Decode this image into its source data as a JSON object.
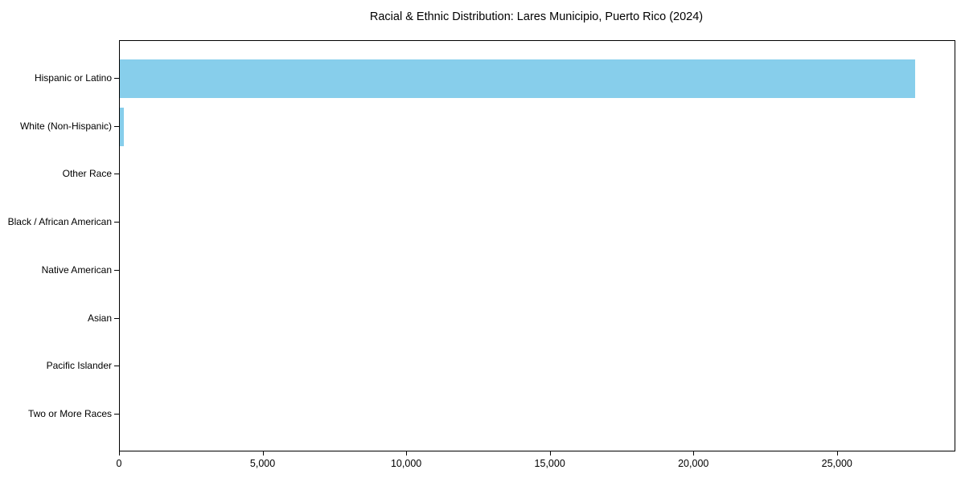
{
  "chart_data": {
    "type": "bar",
    "orientation": "horizontal",
    "title": "Racial & Ethnic Distribution: Lares Municipio, Puerto Rico (2024)",
    "categories": [
      "Hispanic or Latino",
      "White (Non-Hispanic)",
      "Other Race",
      "Black / African American",
      "Native American",
      "Asian",
      "Pacific Islander",
      "Two or More Races"
    ],
    "values": [
      27690,
      130,
      0,
      0,
      0,
      0,
      0,
      0
    ],
    "xlabel": "",
    "ylabel": "",
    "xlim": [
      0,
      29066
    ],
    "xticks": [
      0,
      5000,
      10000,
      15000,
      20000,
      25000
    ],
    "xtick_labels": [
      "0",
      "5,000",
      "10,000",
      "15,000",
      "20,000",
      "25,000"
    ],
    "bar_color": "#87CEEB",
    "background_color": "#ffffff",
    "grid": false,
    "legend": null
  }
}
